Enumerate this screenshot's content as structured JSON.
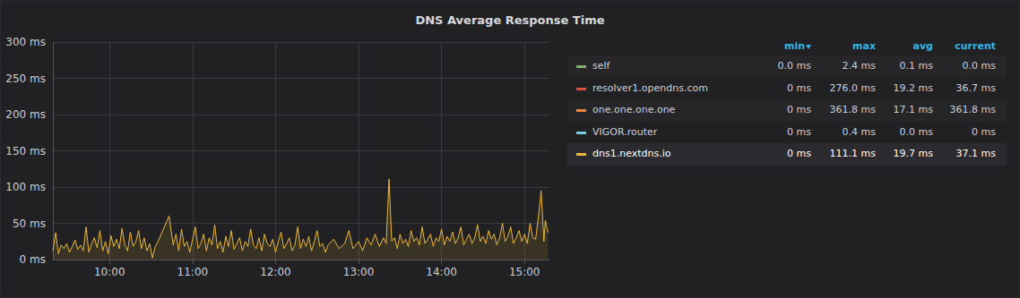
{
  "chart_data": {
    "type": "line",
    "title": "DNS Average Response Time",
    "grid": true,
    "xlim": [
      559,
      918
    ],
    "xticks": [
      {
        "value": 600,
        "label": "10:00"
      },
      {
        "value": 660,
        "label": "11:00"
      },
      {
        "value": 720,
        "label": "12:00"
      },
      {
        "value": 780,
        "label": "13:00"
      },
      {
        "value": 840,
        "label": "14:00"
      },
      {
        "value": 900,
        "label": "15:00"
      }
    ],
    "ylim": [
      0,
      300
    ],
    "yticks": [
      {
        "value": 0,
        "label": "0 ms"
      },
      {
        "value": 50,
        "label": "50 ms"
      },
      {
        "value": 100,
        "label": "100 ms"
      },
      {
        "value": 150,
        "label": "150 ms"
      },
      {
        "value": 200,
        "label": "200 ms"
      },
      {
        "value": 250,
        "label": "250 ms"
      },
      {
        "value": 300,
        "label": "300 ms"
      }
    ],
    "x": [
      559,
      561,
      563,
      565,
      567,
      569,
      571,
      573,
      575,
      577,
      579,
      581,
      583,
      585,
      587,
      589,
      591,
      593,
      595,
      597,
      599,
      601,
      603,
      605,
      607,
      609,
      611,
      613,
      615,
      617,
      619,
      621,
      623,
      625,
      627,
      629,
      631,
      633,
      635,
      643,
      646,
      648,
      650,
      652,
      654,
      656,
      658,
      660,
      662,
      664,
      666,
      668,
      670,
      672,
      674,
      676,
      678,
      680,
      682,
      684,
      686,
      688,
      690,
      692,
      694,
      696,
      698,
      700,
      702,
      704,
      706,
      708,
      710,
      712,
      714,
      716,
      718,
      720,
      722,
      724,
      726,
      728,
      730,
      732,
      734,
      736,
      738,
      740,
      742,
      744,
      746,
      748,
      750,
      752,
      754,
      756,
      758,
      762,
      766,
      770,
      773,
      776,
      780,
      783,
      786,
      789,
      792,
      795,
      798,
      800,
      802,
      804,
      806,
      808,
      810,
      812,
      814,
      816,
      818,
      820,
      822,
      824,
      826,
      828,
      830,
      832,
      834,
      836,
      838,
      840,
      842,
      844,
      846,
      848,
      850,
      852,
      854,
      856,
      858,
      860,
      862,
      864,
      866,
      868,
      870,
      872,
      874,
      876,
      878,
      880,
      882,
      884,
      886,
      888,
      890,
      892,
      894,
      896,
      898,
      900,
      902,
      904,
      906,
      908,
      910,
      912,
      914,
      915,
      917
    ],
    "series": [
      {
        "name": "dns1.nextdns.io",
        "color": "#eab839",
        "values": [
          12,
          37,
          8,
          20,
          15,
          22,
          10,
          18,
          27,
          14,
          20,
          12,
          45,
          10,
          22,
          30,
          16,
          40,
          12,
          25,
          8,
          33,
          18,
          28,
          15,
          43,
          20,
          12,
          38,
          18,
          25,
          40,
          15,
          30,
          12,
          22,
          2,
          18,
          25,
          60,
          20,
          35,
          12,
          42,
          18,
          25,
          10,
          28,
          45,
          15,
          22,
          35,
          12,
          30,
          20,
          48,
          15,
          25,
          10,
          32,
          18,
          40,
          14,
          22,
          30,
          12,
          25,
          18,
          42,
          20,
          15,
          30,
          12,
          35,
          22,
          18,
          28,
          10,
          25,
          38,
          15,
          22,
          30,
          12,
          20,
          45,
          15,
          28,
          18,
          32,
          12,
          25,
          40,
          18,
          22,
          10,
          20,
          28,
          15,
          22,
          40,
          15,
          25,
          12,
          30,
          20,
          35,
          18,
          30,
          22,
          111.1,
          25,
          30,
          15,
          35,
          22,
          28,
          18,
          40,
          25,
          30,
          20,
          45,
          22,
          28,
          35,
          18,
          30,
          25,
          42,
          20,
          32,
          25,
          38,
          22,
          30,
          45,
          20,
          28,
          35,
          22,
          30,
          48,
          25,
          32,
          22,
          40,
          28,
          35,
          20,
          30,
          50,
          25,
          32,
          45,
          22,
          30,
          40,
          25,
          35,
          22,
          50,
          30,
          28,
          58,
          95,
          25,
          54,
          37.1
        ]
      }
    ],
    "legend_table": {
      "columns": [
        "min",
        "max",
        "avg",
        "current"
      ],
      "rows": [
        {
          "name": "self",
          "color": "#7eb26d",
          "cells": [
            "0.0 ms",
            "2.4 ms",
            "0.1 ms",
            "0.0 ms"
          ]
        },
        {
          "name": "resolver1.opendns.com",
          "color": "#e24d42",
          "cells": [
            "0 ms",
            "276.0 ms",
            "19.2 ms",
            "36.7 ms"
          ]
        },
        {
          "name": "one.one.one.one",
          "color": "#ef843c",
          "cells": [
            "0 ms",
            "361.8 ms",
            "17.1 ms",
            "361.8 ms"
          ]
        },
        {
          "name": "VIGOR.router",
          "color": "#6ed0e0",
          "cells": [
            "0 ms",
            "0.4 ms",
            "0.0 ms",
            "0 ms"
          ]
        },
        {
          "name": "dns1.nextdns.io",
          "color": "#eab839",
          "cells": [
            "0 ms",
            "111.1 ms",
            "19.7 ms",
            "37.1 ms"
          ]
        }
      ]
    }
  }
}
